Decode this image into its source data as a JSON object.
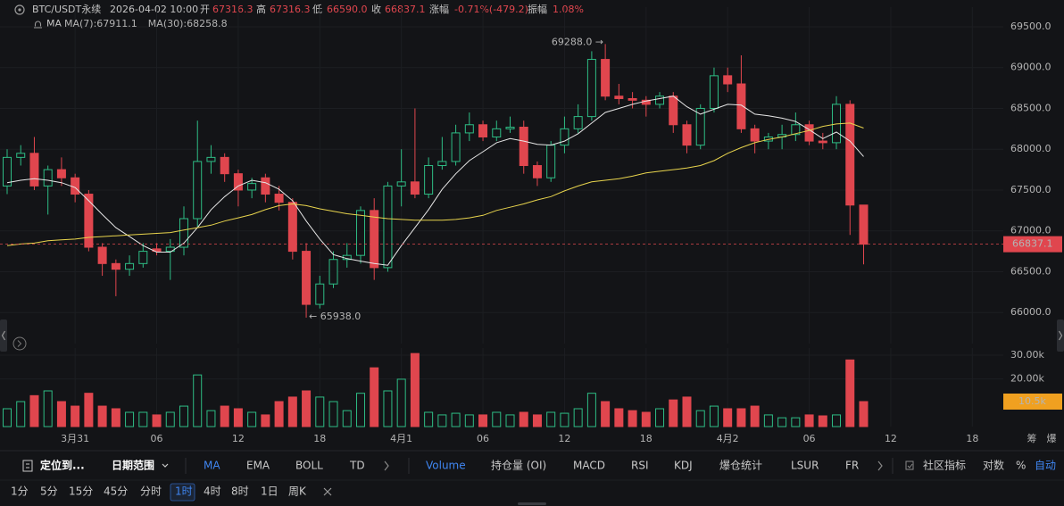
{
  "header": {
    "symbol": "BTC/USDT永续",
    "time": "2026-04-02 10:00",
    "fields": [
      {
        "label": "开",
        "value": "67316.3"
      },
      {
        "label": "高",
        "value": "67316.3"
      },
      {
        "label": "低",
        "value": "66590.0"
      },
      {
        "label": "收",
        "value": "66837.1"
      },
      {
        "label": "涨幅",
        "value": "-0.71%(-479.2)"
      },
      {
        "label": "振幅",
        "value": "1.08%"
      }
    ],
    "indicator": "MA"
  },
  "chart_data": [
    {
      "type": "candlestick",
      "categories": [
        null,
        null,
        null,
        null,
        null,
        "3月31",
        null,
        null,
        null,
        null,
        null,
        "06",
        null,
        null,
        null,
        null,
        null,
        "12",
        null,
        null,
        null,
        null,
        null,
        "18",
        null,
        null,
        null,
        null,
        null,
        "4月1",
        null,
        null,
        null,
        null,
        null,
        "06",
        null,
        null,
        null,
        null,
        null,
        "12",
        null,
        null,
        null,
        null,
        null,
        "18",
        null,
        null,
        null,
        null,
        null,
        "4月2",
        null,
        null,
        null,
        null,
        null,
        "06",
        null,
        null,
        null,
        null,
        null,
        "12",
        null,
        null,
        null,
        null,
        null,
        "18",
        null
      ],
      "open": [
        67550,
        67900,
        67950,
        67550,
        67750,
        67650,
        67450,
        66800,
        66600,
        66530,
        66600,
        66780,
        66750,
        66800,
        67150,
        67850,
        67900,
        67700,
        67500,
        67650,
        67450,
        67350,
        66750,
        66100,
        66350,
        66650,
        66700,
        67250,
        66550,
        67550,
        67600,
        67450,
        67800,
        67850,
        68200,
        68300,
        68150,
        68250,
        68270,
        67800,
        67650,
        68050,
        68250,
        68400,
        69100,
        68650,
        68620,
        68600,
        68550,
        68650,
        68300,
        68050,
        68500,
        68900,
        68800,
        68250,
        68100,
        68150,
        68180,
        68300,
        68100,
        68080,
        68550,
        67316.3,
        null,
        null,
        null,
        null,
        null,
        null,
        null,
        null,
        null
      ],
      "high": [
        68000,
        68050,
        68150,
        67800,
        67900,
        67700,
        67500,
        66850,
        66650,
        66700,
        66850,
        66850,
        66900,
        67300,
        68350,
        68050,
        67950,
        67750,
        67650,
        67700,
        67550,
        67400,
        66850,
        66450,
        66750,
        66850,
        67300,
        67400,
        67600,
        68000,
        68500,
        67900,
        68150,
        68300,
        68450,
        68350,
        68350,
        68400,
        68350,
        67850,
        68100,
        68400,
        68550,
        69200,
        69288,
        68800,
        68700,
        68650,
        68700,
        68700,
        68350,
        68550,
        69000,
        69000,
        69150,
        68300,
        68200,
        68300,
        68450,
        68350,
        68200,
        68650,
        68600,
        67316.3,
        null,
        null,
        null,
        null,
        null,
        null,
        null,
        null,
        null
      ],
      "low": [
        67450,
        67800,
        67500,
        67200,
        67550,
        67350,
        66750,
        66450,
        66200,
        66450,
        66550,
        66700,
        66400,
        66700,
        67050,
        67700,
        67600,
        67300,
        67400,
        67350,
        67250,
        66650,
        65938,
        66050,
        66300,
        66550,
        66600,
        66400,
        66500,
        67300,
        67400,
        67400,
        67750,
        67800,
        68100,
        68100,
        68100,
        68200,
        67700,
        67550,
        67600,
        67950,
        68200,
        68350,
        68600,
        68550,
        68500,
        68400,
        68500,
        68200,
        67950,
        68000,
        68450,
        68700,
        68200,
        67950,
        68000,
        68000,
        68100,
        68050,
        68000,
        68000,
        66950,
        66590,
        null,
        null,
        null,
        null,
        null,
        null,
        null,
        null,
        null
      ],
      "close": [
        67900,
        67950,
        67550,
        67750,
        67650,
        67450,
        66800,
        66600,
        66530,
        66600,
        66750,
        66750,
        66800,
        67150,
        67850,
        67900,
        67700,
        67500,
        67580,
        67450,
        67350,
        66750,
        66100,
        66350,
        66650,
        66700,
        67250,
        66550,
        67550,
        67600,
        67450,
        67800,
        67850,
        68200,
        68300,
        68150,
        68250,
        68270,
        67800,
        67650,
        68050,
        68250,
        68400,
        69100,
        68650,
        68620,
        68600,
        68550,
        68650,
        68300,
        68050,
        68500,
        68900,
        68800,
        68250,
        68100,
        68150,
        68180,
        68300,
        68100,
        68080,
        68550,
        67316.3,
        66837.1,
        null,
        null,
        null,
        null,
        null,
        null,
        null,
        null,
        null
      ],
      "up_color": "#2ebd85",
      "down_color": "#e0464e",
      "series": [
        {
          "name": "MA(7):67911.1",
          "color": "#e6e6e6",
          "values": [
            67590,
            67620,
            67640,
            67620,
            67590,
            67530,
            67370,
            67200,
            67040,
            66930,
            66820,
            66740,
            66740,
            66850,
            67040,
            67260,
            67420,
            67550,
            67620,
            67590,
            67510,
            67370,
            67120,
            66900,
            66710,
            66660,
            66630,
            66600,
            66580,
            66820,
            67040,
            67260,
            67510,
            67700,
            67860,
            67970,
            68080,
            68130,
            68100,
            68060,
            68050,
            68100,
            68190,
            68320,
            68450,
            68500,
            68550,
            68590,
            68620,
            68650,
            68520,
            68430,
            68490,
            68550,
            68540,
            68430,
            68410,
            68380,
            68340,
            68240,
            68130,
            68210,
            68100,
            67911.1,
            null,
            null,
            null,
            null,
            null,
            null,
            null,
            null,
            null
          ]
        },
        {
          "name": "MA(30):68258.8",
          "color": "#e8d44d",
          "values": [
            66820,
            66840,
            66850,
            66880,
            66890,
            66900,
            66920,
            66930,
            66940,
            66950,
            66960,
            66970,
            66980,
            67010,
            67040,
            67070,
            67120,
            67160,
            67200,
            67260,
            67310,
            67330,
            67310,
            67270,
            67240,
            67210,
            67190,
            67170,
            67150,
            67140,
            67130,
            67130,
            67130,
            67140,
            67160,
            67190,
            67250,
            67290,
            67330,
            67380,
            67420,
            67490,
            67550,
            67600,
            67620,
            67640,
            67670,
            67710,
            67730,
            67750,
            67770,
            67800,
            67860,
            67950,
            68020,
            68080,
            68120,
            68150,
            68190,
            68230,
            68280,
            68310,
            68320,
            68258.8,
            null,
            null,
            null,
            null,
            null,
            null,
            null,
            null,
            null
          ]
        }
      ],
      "annotations": [
        {
          "text": "69288.0 →"
        },
        {
          "text": "← 65938.0"
        }
      ],
      "current_price": 66837.1,
      "ylim": [
        65620,
        69740
      ],
      "yticks": [
        {
          "value": 66000,
          "label": "66000.0"
        },
        {
          "value": 66500,
          "label": "66500.0"
        },
        {
          "value": 67000,
          "label": "67000.0"
        },
        {
          "value": 67500,
          "label": "67500.0"
        },
        {
          "value": 68000,
          "label": "68000.0"
        },
        {
          "value": 68500,
          "label": "68500.0"
        },
        {
          "value": 69000,
          "label": "69000.0"
        },
        {
          "value": 69500,
          "label": "69500.0"
        }
      ],
      "grid": true
    },
    {
      "type": "bar",
      "categories": [
        null,
        null,
        null,
        null,
        null,
        "3月31",
        null,
        null,
        null,
        null,
        null,
        "06",
        null,
        null,
        null,
        null,
        null,
        "12",
        null,
        null,
        null,
        null,
        null,
        "18",
        null,
        null,
        null,
        null,
        null,
        "4月1",
        null,
        null,
        null,
        null,
        null,
        "06",
        null,
        null,
        null,
        null,
        null,
        "12",
        null,
        null,
        null,
        null,
        null,
        "18",
        null,
        null,
        null,
        null,
        null,
        "4月2",
        null,
        null,
        null,
        null,
        null,
        "06",
        null,
        null,
        null,
        null,
        null,
        "12",
        null,
        null,
        null,
        null,
        null,
        "18",
        null
      ],
      "values": [
        7500,
        10500,
        13000,
        15000,
        10500,
        8600,
        14000,
        8600,
        7500,
        6000,
        6000,
        4900,
        6000,
        8600,
        21700,
        6700,
        8600,
        7500,
        6000,
        4900,
        10500,
        12400,
        15000,
        12400,
        10500,
        6700,
        14000,
        24700,
        15000,
        19900,
        30700,
        6000,
        4900,
        5600,
        4900,
        4900,
        6000,
        4900,
        6000,
        4900,
        6000,
        5600,
        7500,
        14000,
        10500,
        7500,
        6700,
        6000,
        7500,
        11200,
        12400,
        6700,
        8600,
        7500,
        7500,
        8600,
        4900,
        3700,
        3700,
        4900,
        4500,
        4900,
        28000,
        10500,
        null,
        null,
        null,
        null,
        null,
        null,
        null,
        null,
        null
      ],
      "current": {
        "value": 10500,
        "label": "10.5k"
      },
      "current_color": "#f0a020",
      "ylim": [
        0,
        33000
      ],
      "yticks": [
        {
          "value": 20000,
          "label": "20.00k"
        },
        {
          "value": 30000,
          "label": "30.00k"
        }
      ],
      "grid": true
    }
  ],
  "side_labels": [
    "筹",
    "爆"
  ],
  "toolbar": {
    "goto": "定位到...",
    "date_range": "日期范围",
    "indicators": [
      "MA",
      "EMA",
      "BOLL",
      "TD"
    ],
    "sub_indicators": [
      "Volume",
      "持仓量 (OI)",
      "MACD",
      "RSI",
      "KDJ",
      "爆仓统计",
      "LSUR",
      "FR"
    ],
    "community": "社区指标",
    "log": "对数",
    "percent": "%",
    "auto": "自动"
  },
  "intervals": [
    "1分",
    "5分",
    "15分",
    "45分",
    "分时",
    "1时",
    "4时",
    "8时",
    "1日",
    "周K"
  ]
}
